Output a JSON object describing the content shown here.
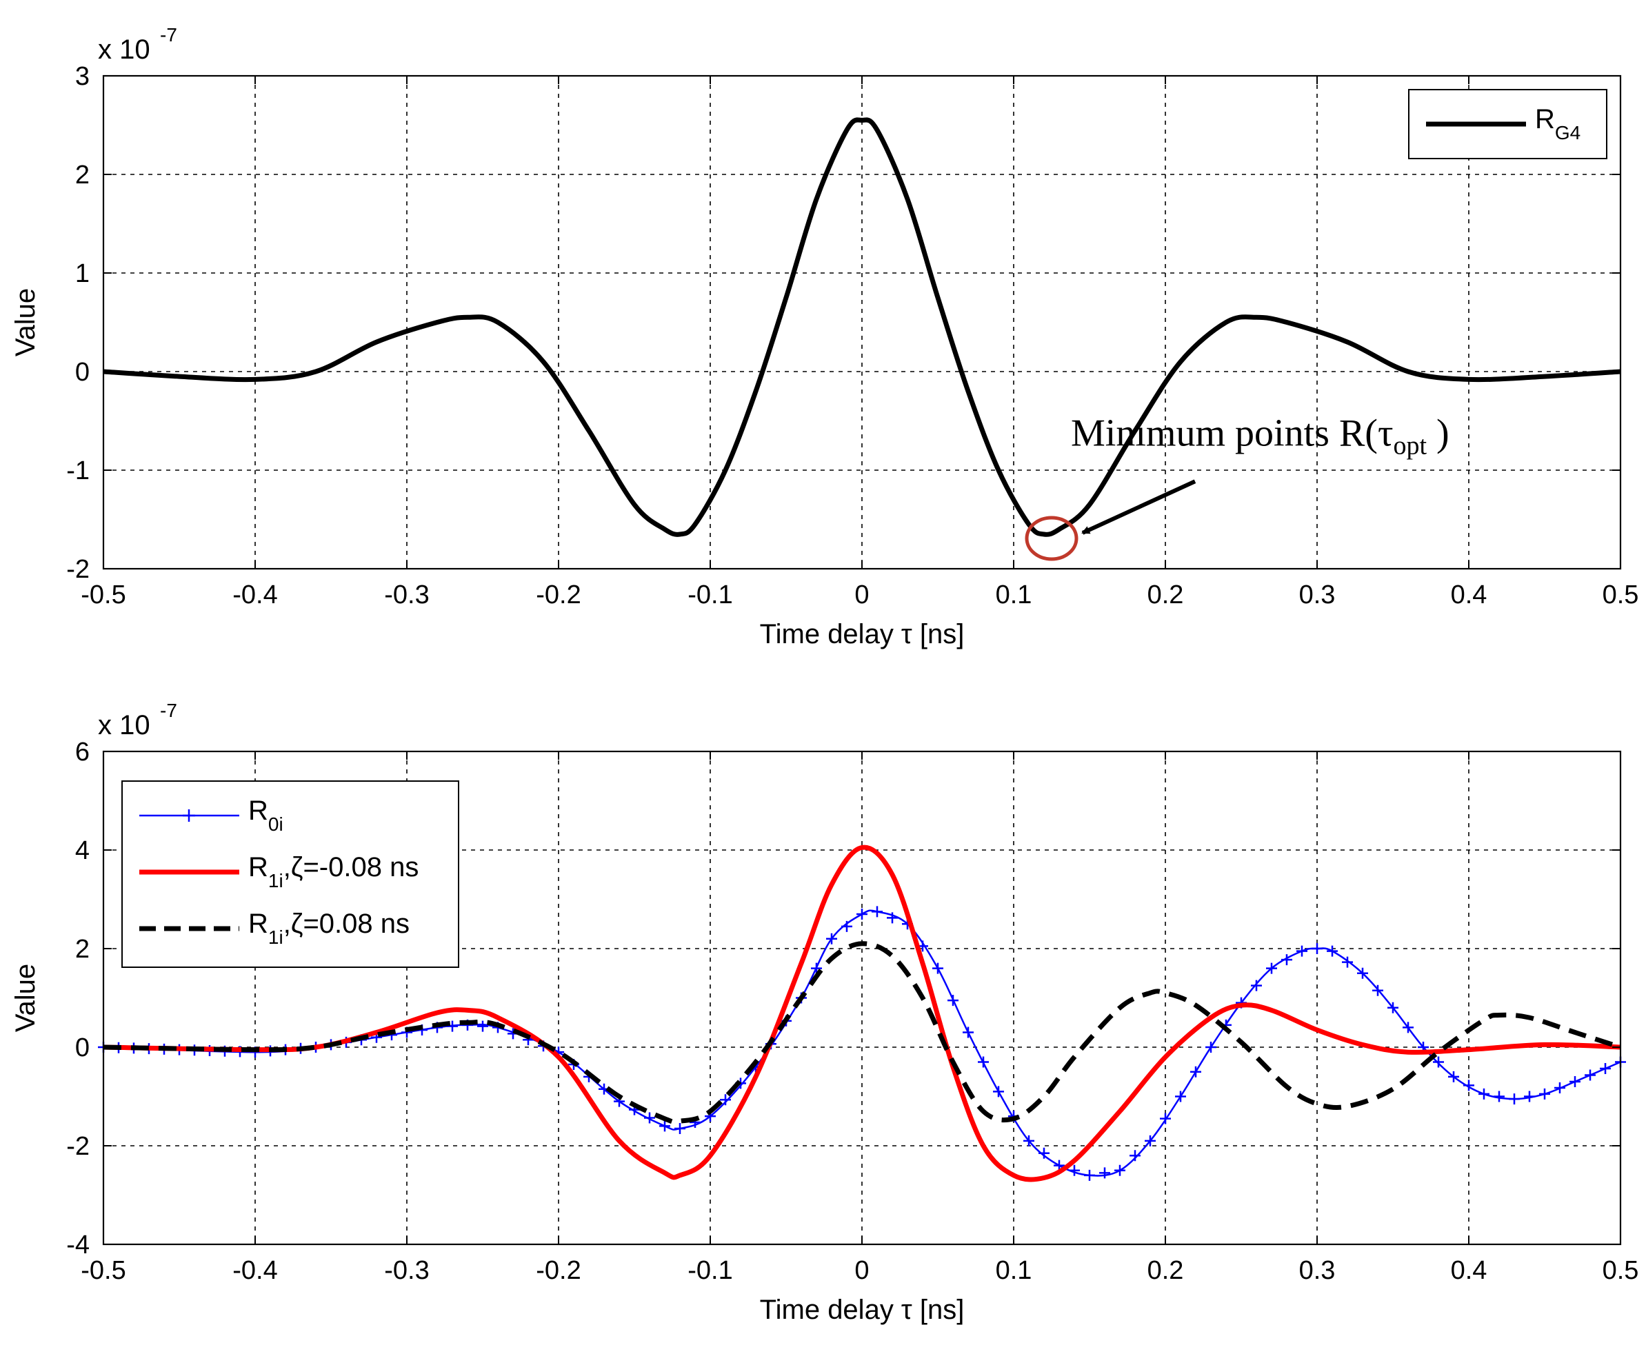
{
  "chart_data": [
    {
      "type": "line",
      "title": "",
      "xlabel": "Time delay τ [ns]",
      "ylabel": "Value",
      "exponent_label": "x 10",
      "exponent": "-7",
      "xlim": [
        -0.5,
        0.5
      ],
      "ylim": [
        -2,
        3
      ],
      "xticks": [
        "-0.5",
        "-0.4",
        "-0.3",
        "-0.2",
        "-0.1",
        "0",
        "0.1",
        "0.2",
        "0.3",
        "0.4",
        "0.5"
      ],
      "yticks": [
        "-2",
        "-1",
        "0",
        "1",
        "2",
        "3"
      ],
      "grid": true,
      "legend_position": "top-right",
      "series": [
        {
          "name": "R",
          "name_sub": "G4",
          "color": "#000000",
          "style": "solid-thick",
          "x": [
            -0.5,
            -0.45,
            -0.4,
            -0.36,
            -0.32,
            -0.28,
            -0.26,
            -0.24,
            -0.21,
            -0.18,
            -0.15,
            -0.13,
            -0.12,
            -0.11,
            -0.09,
            -0.07,
            -0.05,
            -0.03,
            -0.01,
            0,
            0.01,
            0.03,
            0.05,
            0.07,
            0.09,
            0.11,
            0.12,
            0.13,
            0.15,
            0.18,
            0.21,
            0.24,
            0.26,
            0.28,
            0.32,
            0.36,
            0.4,
            0.45,
            0.5
          ],
          "y": [
            0,
            -0.05,
            -0.08,
            0,
            0.3,
            0.5,
            0.55,
            0.5,
            0.1,
            -0.6,
            -1.35,
            -1.6,
            -1.65,
            -1.55,
            -1.0,
            -0.2,
            0.75,
            1.75,
            2.45,
            2.55,
            2.45,
            1.75,
            0.75,
            -0.2,
            -1.0,
            -1.55,
            -1.65,
            -1.6,
            -1.35,
            -0.6,
            0.1,
            0.5,
            0.55,
            0.5,
            0.3,
            0,
            -0.08,
            -0.05,
            0
          ]
        }
      ],
      "annotations": [
        {
          "text": "Minimum points R(τ",
          "sub": "opt",
          "suffix": " )",
          "point_x": 0.125,
          "point_y": -1.65,
          "text_x": 0.19,
          "text_y": -0.75,
          "highlight_color": "#c0392b"
        }
      ]
    },
    {
      "type": "line",
      "title": "",
      "xlabel": "Time delay τ [ns]",
      "ylabel": "Value",
      "exponent_label": "x 10",
      "exponent": "-7",
      "xlim": [
        -0.5,
        0.5
      ],
      "ylim": [
        -4,
        6
      ],
      "xticks": [
        "-0.5",
        "-0.4",
        "-0.3",
        "-0.2",
        "-0.1",
        "0",
        "0.1",
        "0.2",
        "0.3",
        "0.4",
        "0.5"
      ],
      "yticks": [
        "-4",
        "-2",
        "0",
        "2",
        "4",
        "6"
      ],
      "grid": true,
      "legend_position": "top-left",
      "series": [
        {
          "name": "R",
          "name_sub": "0i",
          "suffix": "",
          "color": "#0000ff",
          "style": "solid-plus",
          "x": [
            -0.5,
            -0.4,
            -0.36,
            -0.32,
            -0.28,
            -0.26,
            -0.24,
            -0.2,
            -0.16,
            -0.13,
            -0.12,
            -0.1,
            -0.07,
            -0.04,
            -0.02,
            0,
            0.01,
            0.03,
            0.05,
            0.07,
            0.09,
            0.11,
            0.13,
            0.15,
            0.17,
            0.19,
            0.21,
            0.23,
            0.25,
            0.27,
            0.29,
            0.3,
            0.31,
            0.33,
            0.35,
            0.37,
            0.39,
            0.41,
            0.43,
            0.45,
            0.47,
            0.5
          ],
          "y": [
            0,
            -0.1,
            0,
            0.2,
            0.4,
            0.45,
            0.4,
            -0.1,
            -1.1,
            -1.6,
            -1.65,
            -1.4,
            -0.4,
            1.0,
            2.2,
            2.7,
            2.75,
            2.5,
            1.6,
            0.3,
            -0.9,
            -1.9,
            -2.4,
            -2.6,
            -2.5,
            -1.9,
            -1.0,
            0,
            0.9,
            1.6,
            1.95,
            2.0,
            1.95,
            1.5,
            0.8,
            0,
            -0.6,
            -0.95,
            -1.05,
            -0.95,
            -0.7,
            -0.3
          ]
        },
        {
          "name": "R",
          "name_sub": "1i",
          "suffix": ",ζ=-0.08 ns",
          "color": "#ff0000",
          "style": "solid-thick",
          "x": [
            -0.5,
            -0.4,
            -0.36,
            -0.32,
            -0.28,
            -0.26,
            -0.24,
            -0.2,
            -0.16,
            -0.13,
            -0.12,
            -0.1,
            -0.07,
            -0.04,
            -0.02,
            0,
            0.02,
            0.04,
            0.06,
            0.08,
            0.1,
            0.12,
            0.14,
            0.17,
            0.2,
            0.23,
            0.25,
            0.27,
            0.3,
            0.33,
            0.36,
            0.4,
            0.45,
            0.5
          ],
          "y": [
            0,
            -0.05,
            0,
            0.3,
            0.7,
            0.75,
            0.6,
            -0.2,
            -1.9,
            -2.55,
            -2.6,
            -2.2,
            -0.6,
            1.7,
            3.3,
            4.05,
            3.5,
            1.7,
            -0.4,
            -2.0,
            -2.6,
            -2.65,
            -2.3,
            -1.3,
            -0.2,
            0.6,
            0.85,
            0.75,
            0.35,
            0.05,
            -0.1,
            -0.05,
            0.05,
            0
          ]
        },
        {
          "name": "R",
          "name_sub": "1i",
          "suffix": ",ζ=0.08 ns",
          "color": "#000000",
          "style": "dashed-thick",
          "x": [
            -0.5,
            -0.4,
            -0.36,
            -0.32,
            -0.28,
            -0.26,
            -0.24,
            -0.2,
            -0.16,
            -0.13,
            -0.12,
            -0.1,
            -0.07,
            -0.04,
            -0.02,
            0,
            0.02,
            0.04,
            0.06,
            0.08,
            0.1,
            0.12,
            0.14,
            0.17,
            0.19,
            0.2,
            0.22,
            0.25,
            0.28,
            0.3,
            0.32,
            0.35,
            0.38,
            0.41,
            0.42,
            0.44,
            0.47,
            0.5
          ],
          "y": [
            0,
            -0.05,
            0,
            0.25,
            0.45,
            0.5,
            0.45,
            -0.1,
            -1.0,
            -1.45,
            -1.5,
            -1.3,
            -0.3,
            1.0,
            1.8,
            2.1,
            1.85,
            1.0,
            -0.3,
            -1.3,
            -1.45,
            -1.0,
            -0.2,
            0.8,
            1.1,
            1.1,
            0.85,
            0.1,
            -0.8,
            -1.15,
            -1.2,
            -0.85,
            -0.1,
            0.55,
            0.65,
            0.6,
            0.3,
            0
          ]
        }
      ]
    }
  ]
}
